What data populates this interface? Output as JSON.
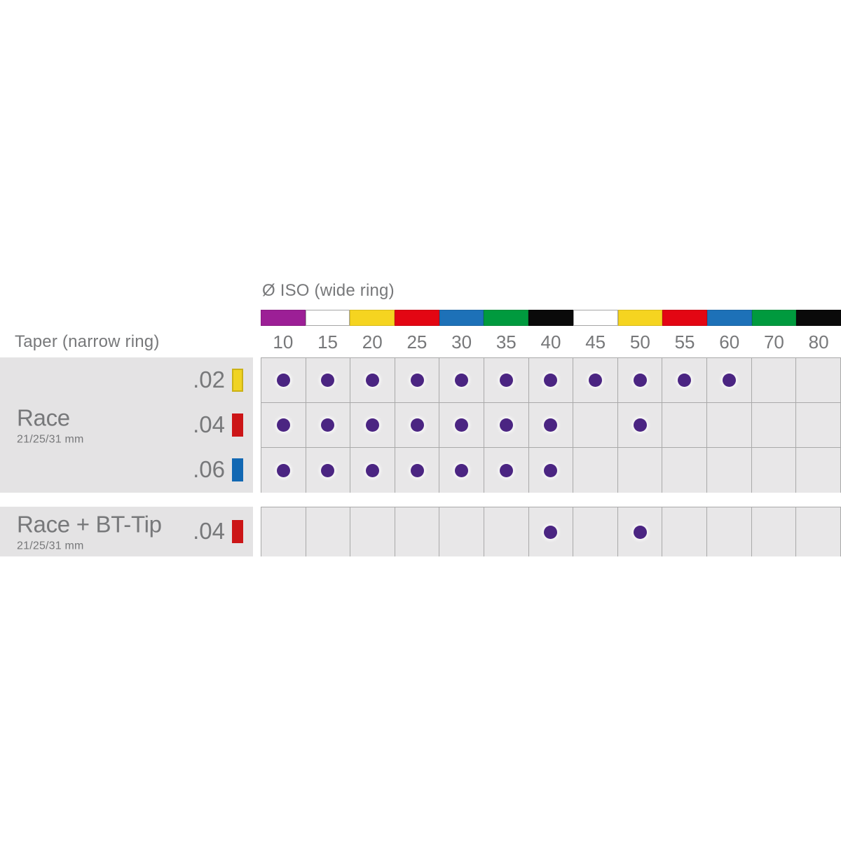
{
  "header": {
    "iso_label": "Ø ISO (wide ring)",
    "taper_label": "Taper (narrow ring)"
  },
  "iso_sizes": [
    "10",
    "15",
    "20",
    "25",
    "30",
    "35",
    "40",
    "45",
    "50",
    "55",
    "60",
    "70",
    "80"
  ],
  "iso_ring_colors": [
    "#9c1f96",
    "#ffffff",
    "#f5d420",
    "#e30613",
    "#1d71b8",
    "#009a3e",
    "#0a0a0a",
    "#ffffff",
    "#f5d420",
    "#e30613",
    "#1d71b8",
    "#009a3e",
    "#0a0a0a"
  ],
  "groups": [
    {
      "name": "Race",
      "subtitle": "21/25/31 mm",
      "rows": [
        {
          "taper": ".02",
          "swatch_color": "#f0d322",
          "swatch_border": "#cbb217",
          "available_sizes": [
            "10",
            "15",
            "20",
            "25",
            "30",
            "35",
            "40",
            "45",
            "50",
            "55",
            "60"
          ]
        },
        {
          "taper": ".04",
          "swatch_color": "#cc1517",
          "swatch_border": "",
          "available_sizes": [
            "10",
            "15",
            "20",
            "25",
            "30",
            "35",
            "40",
            "50"
          ]
        },
        {
          "taper": ".06",
          "swatch_color": "#1268b3",
          "swatch_border": "",
          "available_sizes": [
            "10",
            "15",
            "20",
            "25",
            "30",
            "35",
            "40"
          ]
        }
      ]
    },
    {
      "name": "Race + BT-Tip",
      "subtitle": "21/25/31 mm",
      "rows": [
        {
          "taper": ".04",
          "swatch_color": "#cc1517",
          "swatch_border": "",
          "available_sizes": [
            "40",
            "50"
          ]
        }
      ]
    }
  ],
  "colors": {
    "dot": "#4b2582",
    "panel_bg": "#e4e3e4",
    "cell_bg": "#e8e7e8",
    "grid_border": "#a9a9a9",
    "text": "#77787a"
  },
  "chart_data": {
    "type": "table",
    "title": "Ø ISO (wide ring)",
    "xlabel": "Ø ISO (wide ring)",
    "ylabel": "Taper (narrow ring)",
    "columns": [
      "10",
      "15",
      "20",
      "25",
      "30",
      "35",
      "40",
      "45",
      "50",
      "55",
      "60",
      "70",
      "80"
    ],
    "column_ring_colors": [
      "purple",
      "white",
      "yellow",
      "red",
      "blue",
      "green",
      "black",
      "white",
      "yellow",
      "red",
      "blue",
      "green",
      "black"
    ],
    "rows": [
      {
        "product": "Race",
        "lengths": "21/25/31 mm",
        "taper": ".02",
        "available": [
          10,
          15,
          20,
          25,
          30,
          35,
          40,
          45,
          50,
          55,
          60
        ]
      },
      {
        "product": "Race",
        "lengths": "21/25/31 mm",
        "taper": ".04",
        "available": [
          10,
          15,
          20,
          25,
          30,
          35,
          40,
          50
        ]
      },
      {
        "product": "Race",
        "lengths": "21/25/31 mm",
        "taper": ".06",
        "available": [
          10,
          15,
          20,
          25,
          30,
          35,
          40
        ]
      },
      {
        "product": "Race + BT-Tip",
        "lengths": "21/25/31 mm",
        "taper": ".04",
        "available": [
          40,
          50
        ]
      }
    ],
    "legend_position": "none",
    "grid": true
  }
}
